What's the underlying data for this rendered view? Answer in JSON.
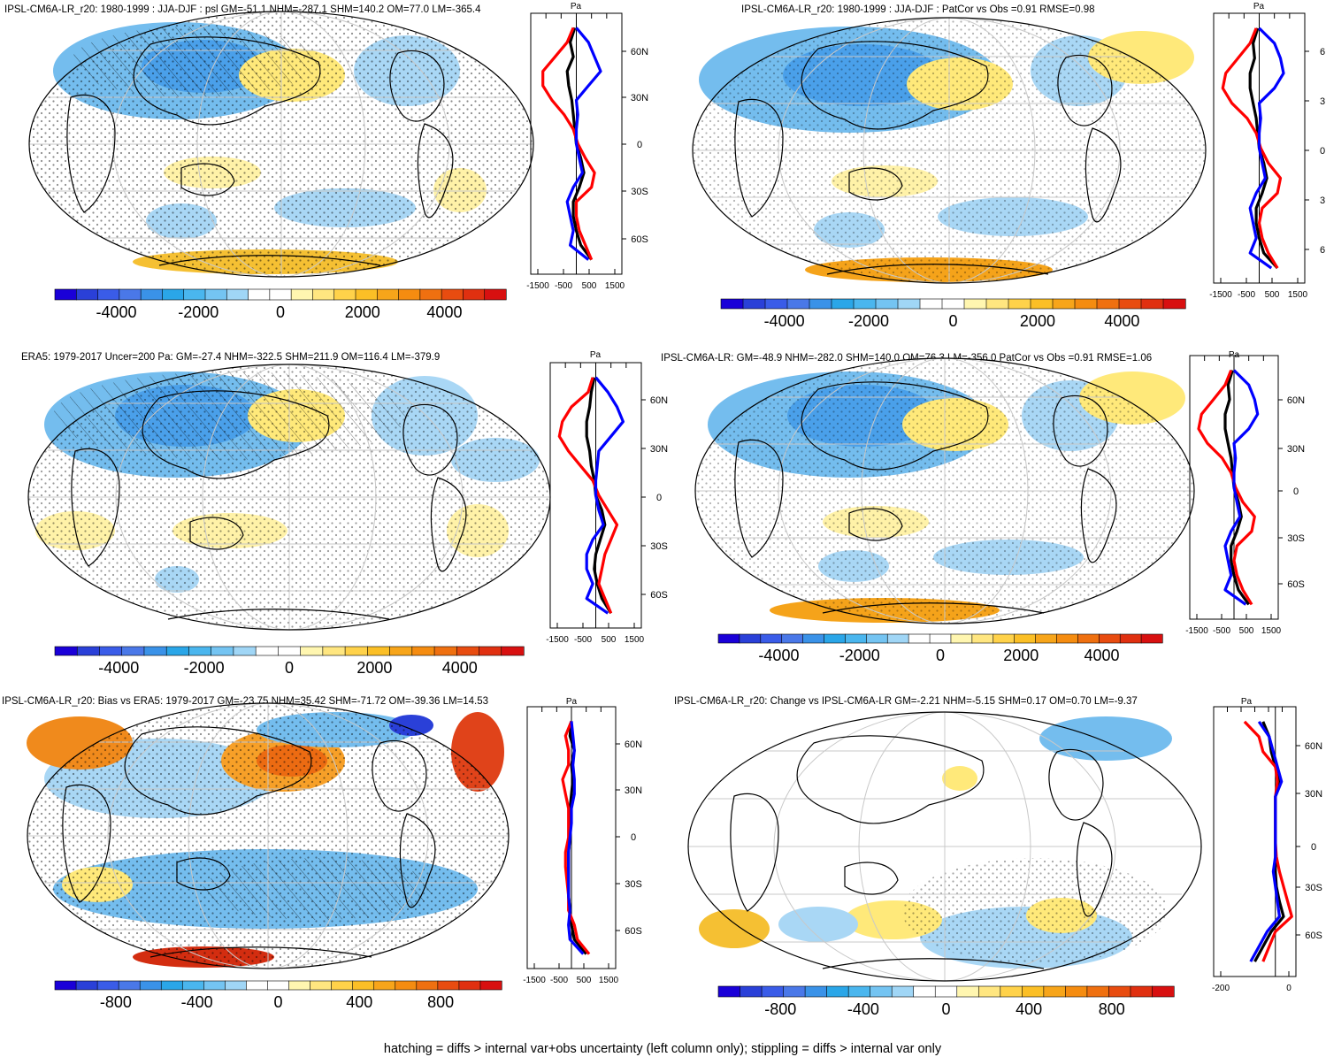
{
  "figure": {
    "footnote": "hatching = diffs > internal var+obs uncertainty (left column only); stippling = diffs > internal var only"
  },
  "colors": {
    "land_line": "#000000",
    "grid_line": "#c8c8c8",
    "profile_red": "#ff0000",
    "profile_blue": "#0000ff",
    "profile_black": "#000000"
  },
  "chart_data": [
    {
      "type": "map-with-zonal-profile",
      "title": "IPSL-CM6A-LR_r20: 1980-1999 : JJA-DJF : psl GM=-51.1 NHM=-287.1 SHM=140.2 OM=77.0 LM=-365.4",
      "profile_unit": "Pa",
      "lat_ticks": [
        "60N",
        "30N",
        "0",
        "30S",
        "60S"
      ],
      "profile_xticks": [
        "-1500",
        "-500",
        "500",
        "1500"
      ],
      "profile_xlim": [
        -1500,
        1500
      ],
      "colorbar_ticks": [
        "-4000",
        "-2000",
        "0",
        "2000",
        "4000"
      ],
      "colorbar_range": [
        -5500,
        5500
      ],
      "profile_series": [
        {
          "color": "black",
          "lat": [
            80,
            70,
            60,
            50,
            40,
            30,
            20,
            10,
            0,
            -10,
            -20,
            -30,
            -40,
            -50,
            -60,
            -70,
            -80
          ],
          "values": [
            -50,
            -200,
            -100,
            -300,
            -250,
            -150,
            -100,
            -50,
            0,
            150,
            250,
            100,
            -100,
            -100,
            0,
            150,
            500
          ]
        },
        {
          "color": "red",
          "lat": [
            80,
            70,
            60,
            50,
            40,
            30,
            20,
            10,
            0,
            -10,
            -20,
            -30,
            -40,
            -50,
            -60,
            -70,
            -80
          ],
          "values": [
            -100,
            -300,
            -700,
            -1100,
            -1100,
            -800,
            -400,
            -100,
            50,
            300,
            600,
            500,
            0,
            0,
            100,
            300,
            500
          ]
        },
        {
          "color": "blue",
          "lat": [
            80,
            70,
            60,
            50,
            40,
            30,
            20,
            10,
            0,
            -10,
            -20,
            -30,
            -40,
            -50,
            -60,
            -70,
            -80
          ],
          "values": [
            0,
            400,
            600,
            800,
            400,
            0,
            50,
            0,
            0,
            100,
            200,
            -100,
            -300,
            -200,
            -100,
            -200,
            400
          ]
        }
      ]
    },
    {
      "type": "map-with-zonal-profile",
      "title": "IPSL-CM6A-LR_r20: 1980-1999 : JJA-DJF : PatCor vs Obs =0.91 RMSE=0.98",
      "profile_unit": "Pa",
      "lat_ticks": [
        "6",
        "3",
        "0",
        "3",
        "6"
      ],
      "profile_xticks": [
        "-1500",
        "-500",
        "500",
        "1500"
      ],
      "profile_xlim": [
        -1500,
        1500
      ],
      "colorbar_ticks": [
        "-4000",
        "-2000",
        "0",
        "2000",
        "4000"
      ],
      "colorbar_range": [
        -5500,
        5500
      ],
      "profile_series": [
        {
          "color": "black",
          "lat": [
            80,
            70,
            60,
            50,
            40,
            30,
            20,
            10,
            0,
            -10,
            -20,
            -30,
            -40,
            -50,
            -60,
            -70,
            -80
          ],
          "values": [
            -50,
            -200,
            -150,
            -300,
            -300,
            -200,
            -100,
            -50,
            0,
            150,
            250,
            100,
            -100,
            -100,
            0,
            150,
            600
          ]
        },
        {
          "color": "red",
          "lat": [
            80,
            70,
            60,
            50,
            40,
            30,
            20,
            10,
            0,
            -10,
            -20,
            -30,
            -40,
            -50,
            -60,
            -70,
            -80
          ],
          "values": [
            -100,
            -300,
            -700,
            -1100,
            -1200,
            -900,
            -400,
            -100,
            50,
            300,
            700,
            600,
            100,
            0,
            100,
            300,
            600
          ]
        },
        {
          "color": "blue",
          "lat": [
            80,
            70,
            60,
            50,
            40,
            30,
            20,
            10,
            0,
            -10,
            -20,
            -30,
            -40,
            -50,
            -60,
            -70,
            -80
          ],
          "values": [
            0,
            500,
            700,
            800,
            500,
            0,
            50,
            0,
            0,
            100,
            200,
            -100,
            -300,
            -200,
            -100,
            -300,
            400
          ]
        }
      ]
    },
    {
      "type": "map-with-zonal-profile",
      "title": "ERA5: 1979-2017 Uncer=200 Pa: GM=-27.4 NHM=-322.5 SHM=211.9 OM=116.4 LM=-379.9",
      "profile_unit": "Pa",
      "lat_ticks": [
        "60N",
        "30N",
        "0",
        "30S",
        "60S"
      ],
      "profile_xticks": [
        "-1500",
        "-500",
        "500",
        "1500"
      ],
      "profile_xlim": [
        -1500,
        1500
      ],
      "colorbar_ticks": [
        "-4000",
        "-2000",
        "0",
        "2000",
        "4000"
      ],
      "colorbar_range": [
        -5500,
        5500
      ],
      "profile_series": [
        {
          "color": "black",
          "lat": [
            80,
            70,
            60,
            50,
            40,
            30,
            20,
            10,
            0,
            -10,
            -20,
            -30,
            -40,
            -50,
            -60,
            -70,
            -80
          ],
          "values": [
            -50,
            -150,
            -200,
            -300,
            -300,
            -200,
            -150,
            -50,
            0,
            200,
            300,
            150,
            0,
            -50,
            50,
            200,
            500
          ]
        },
        {
          "color": "red",
          "lat": [
            80,
            70,
            60,
            50,
            40,
            30,
            20,
            10,
            0,
            -10,
            -20,
            -30,
            -40,
            -50,
            -60,
            -70,
            -80
          ],
          "values": [
            -100,
            -250,
            -800,
            -1100,
            -1200,
            -900,
            -500,
            -100,
            100,
            400,
            700,
            500,
            300,
            200,
            100,
            300,
            500
          ]
        },
        {
          "color": "blue",
          "lat": [
            80,
            70,
            60,
            50,
            40,
            30,
            20,
            10,
            0,
            -10,
            -20,
            -30,
            -40,
            -50,
            -60,
            -70,
            -80
          ],
          "values": [
            0,
            400,
            700,
            900,
            500,
            100,
            50,
            0,
            0,
            100,
            250,
            -100,
            -300,
            -300,
            -100,
            -300,
            400
          ]
        }
      ]
    },
    {
      "type": "map-with-zonal-profile",
      "title": "IPSL-CM6A-LR: GM=-48.9 NHM=-282.0 SHM=140.0 OM=76.3 LM=-356.0 PatCor vs Obs =0.91 RMSE=1.06",
      "profile_unit": "Pa",
      "lat_ticks": [
        "60N",
        "30N",
        "0",
        "30S",
        "60S"
      ],
      "profile_xticks": [
        "-1500",
        "-500",
        "500",
        "1500"
      ],
      "profile_xlim": [
        -1500,
        1500
      ],
      "colorbar_ticks": [
        "-4000",
        "-2000",
        "0",
        "2000",
        "4000"
      ],
      "colorbar_range": [
        -5500,
        5500
      ],
      "profile_series": [
        {
          "color": "black",
          "lat": [
            80,
            70,
            60,
            50,
            40,
            30,
            20,
            10,
            0,
            -10,
            -20,
            -30,
            -40,
            -50,
            -60,
            -70,
            -80
          ],
          "values": [
            -50,
            -200,
            -150,
            -300,
            -300,
            -200,
            -100,
            -50,
            0,
            150,
            250,
            100,
            -100,
            -100,
            0,
            150,
            500
          ]
        },
        {
          "color": "red",
          "lat": [
            80,
            70,
            60,
            50,
            40,
            30,
            20,
            10,
            0,
            -10,
            -20,
            -30,
            -40,
            -50,
            -60,
            -70,
            -80
          ],
          "values": [
            -100,
            -300,
            -700,
            -1100,
            -1200,
            -900,
            -400,
            -100,
            50,
            300,
            700,
            600,
            100,
            0,
            100,
            300,
            600
          ]
        },
        {
          "color": "blue",
          "lat": [
            80,
            70,
            60,
            50,
            40,
            30,
            20,
            10,
            0,
            -10,
            -20,
            -30,
            -40,
            -50,
            -60,
            -70,
            -80
          ],
          "values": [
            0,
            500,
            700,
            800,
            500,
            0,
            50,
            0,
            0,
            100,
            200,
            -100,
            -300,
            -200,
            -100,
            -300,
            400
          ]
        }
      ]
    },
    {
      "type": "map-with-zonal-profile",
      "title": "IPSL-CM6A-LR_r20: Bias vs ERA5: 1979-2017 GM=-23.75 NHM=35.42 SHM=-71.72 OM=-39.36 LM=14.53",
      "profile_unit": "Pa",
      "lat_ticks": [
        "60N",
        "30N",
        "0",
        "30S",
        "60S"
      ],
      "profile_xticks": [
        "-1500",
        "-500",
        "500",
        "1500"
      ],
      "profile_xlim": [
        -1500,
        1500
      ],
      "colorbar_ticks": [
        "-800",
        "-400",
        "0",
        "400",
        "800"
      ],
      "colorbar_range": [
        -1100,
        1100
      ],
      "profile_series": [
        {
          "color": "black",
          "lat": [
            80,
            70,
            60,
            50,
            40,
            30,
            20,
            10,
            0,
            -10,
            -20,
            -30,
            -40,
            -50,
            -60,
            -70,
            -80
          ],
          "values": [
            0,
            -50,
            100,
            0,
            50,
            0,
            -50,
            -50,
            -50,
            -100,
            -100,
            -100,
            -100,
            -50,
            0,
            100,
            500
          ]
        },
        {
          "color": "red",
          "lat": [
            80,
            70,
            60,
            50,
            40,
            30,
            20,
            10,
            0,
            -10,
            -20,
            -30,
            -40,
            -50,
            -60,
            -70,
            -80
          ],
          "values": [
            0,
            -200,
            -100,
            -100,
            -300,
            -200,
            -100,
            -100,
            -100,
            -200,
            -200,
            -150,
            -100,
            -100,
            100,
            200,
            600
          ]
        },
        {
          "color": "blue",
          "lat": [
            80,
            70,
            60,
            50,
            40,
            30,
            20,
            10,
            0,
            -10,
            -20,
            -30,
            -40,
            -50,
            -60,
            -70,
            -80
          ],
          "values": [
            0,
            50,
            100,
            50,
            100,
            100,
            0,
            0,
            -50,
            -100,
            -100,
            -100,
            -100,
            -50,
            -100,
            -50,
            400
          ]
        }
      ]
    },
    {
      "type": "map-with-zonal-profile",
      "title": "IPSL-CM6A-LR_r20: Change vs IPSL-CM6A-LR GM=-2.21 NHM=-5.15 SHM=0.17 OM=0.70 LM=-9.37",
      "profile_unit": "Pa",
      "lat_ticks": [
        "60N",
        "30N",
        "0",
        "30S",
        "60S"
      ],
      "profile_xticks": [
        "-200",
        "0"
      ],
      "profile_xlim": [
        -300,
        100
      ],
      "colorbar_ticks": [
        "-800",
        "-400",
        "0",
        "400",
        "800"
      ],
      "colorbar_range": [
        -1100,
        1100
      ],
      "profile_series": [
        {
          "color": "black",
          "lat": [
            80,
            70,
            60,
            50,
            40,
            30,
            20,
            10,
            0,
            -10,
            -20,
            -30,
            -40,
            -50,
            -60,
            -70,
            -80
          ],
          "values": [
            -60,
            -30,
            -20,
            0,
            20,
            0,
            0,
            0,
            0,
            0,
            0,
            5,
            20,
            40,
            -20,
            -60,
            -100
          ]
        },
        {
          "color": "red",
          "lat": [
            80,
            70,
            60,
            50,
            40,
            30,
            20,
            10,
            0,
            -10,
            -20,
            -30,
            -40,
            -50,
            -60,
            -70,
            -80
          ],
          "values": [
            -150,
            -80,
            -60,
            0,
            10,
            0,
            0,
            0,
            0,
            5,
            20,
            40,
            60,
            80,
            0,
            -30,
            -60
          ]
        },
        {
          "color": "blue",
          "lat": [
            80,
            70,
            60,
            50,
            40,
            30,
            20,
            10,
            0,
            -10,
            -20,
            -30,
            -40,
            -50,
            -60,
            -70,
            -80
          ],
          "values": [
            -80,
            -30,
            -10,
            10,
            30,
            0,
            0,
            0,
            0,
            0,
            -10,
            0,
            10,
            20,
            -40,
            -80,
            -120
          ]
        }
      ]
    }
  ]
}
